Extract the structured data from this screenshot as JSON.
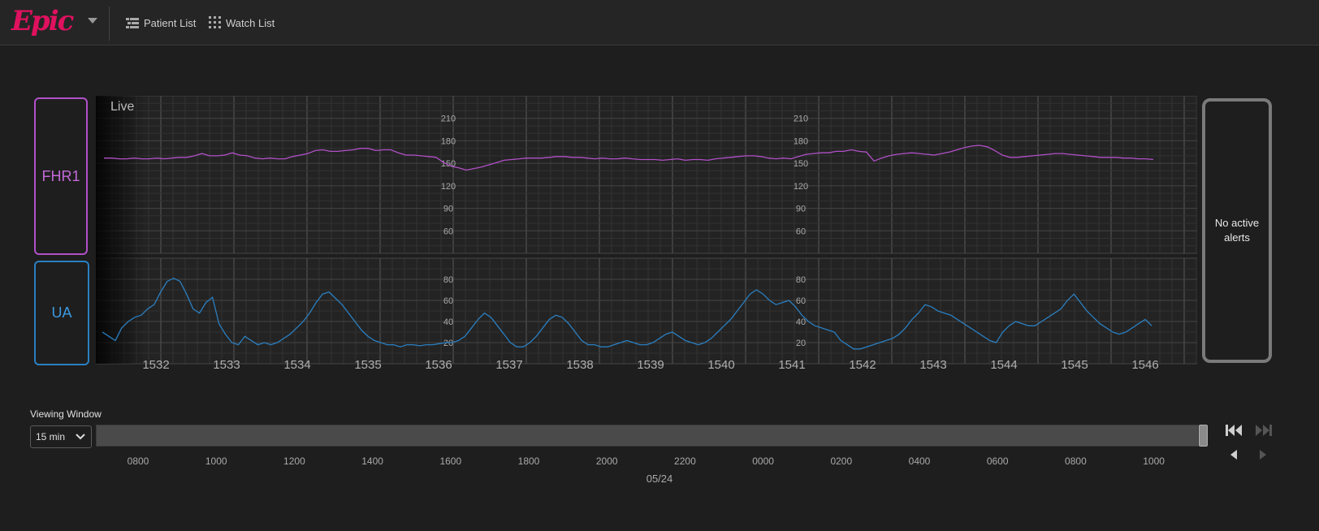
{
  "app": {
    "logo_text": "Epic",
    "brand_color": "#e0115f"
  },
  "nav": {
    "patient_list": {
      "label": "Patient List",
      "icon": "list-icon"
    },
    "watch_list": {
      "label": "Watch List",
      "icon": "grid-dots-icon"
    }
  },
  "tracing": {
    "mode_label": "Live",
    "fhr_label": "FHR1",
    "ua_label": "UA",
    "fhr_color": "#b150c8",
    "ua_color": "#2a7fc1",
    "fhr_scale_labels": [
      "210",
      "180",
      "150",
      "120",
      "90",
      "60"
    ],
    "ua_scale_labels": [
      "80",
      "60",
      "40",
      "20"
    ],
    "time_labels": [
      "1532",
      "1533",
      "1534",
      "1535",
      "1536",
      "1537",
      "1538",
      "1539",
      "1540",
      "1541",
      "1542",
      "1543",
      "1544",
      "1545",
      "1546"
    ],
    "fhr_series_bpm": [
      157,
      157,
      156,
      156,
      157,
      156,
      156,
      157,
      156,
      157,
      158,
      158,
      160,
      163,
      160,
      160,
      161,
      164,
      161,
      160,
      157,
      156,
      157,
      156,
      156,
      159,
      161,
      163,
      167,
      168,
      166,
      166,
      167,
      168,
      170,
      170,
      167,
      168,
      168,
      164,
      161,
      161,
      160,
      159,
      158,
      151,
      146,
      144,
      141,
      143,
      145,
      148,
      151,
      154,
      155,
      156,
      157,
      157,
      157,
      158,
      159,
      159,
      158,
      158,
      157,
      156,
      157,
      156,
      156,
      157,
      156,
      155,
      155,
      155,
      154,
      155,
      156,
      154,
      155,
      155,
      154,
      156,
      157,
      158,
      159,
      160,
      160,
      159,
      157,
      156,
      157,
      156,
      159,
      162,
      163,
      164,
      164,
      166,
      166,
      168,
      166,
      165,
      153,
      157,
      160,
      162,
      163,
      164,
      163,
      162,
      161,
      163,
      165,
      168,
      171,
      173,
      174,
      172,
      167,
      161,
      158,
      158,
      159,
      160,
      161,
      162,
      163,
      163,
      162,
      161,
      160,
      159,
      158,
      158,
      158,
      157,
      157,
      156,
      156,
      155
    ],
    "ua_series_mmhg": [
      30,
      26,
      22,
      34,
      40,
      44,
      46,
      52,
      56,
      68,
      78,
      81,
      78,
      66,
      52,
      48,
      58,
      63,
      38,
      28,
      20,
      18,
      26,
      22,
      18,
      20,
      18,
      20,
      24,
      28,
      34,
      40,
      48,
      58,
      66,
      68,
      62,
      56,
      48,
      40,
      32,
      26,
      22,
      20,
      18,
      18,
      16,
      18,
      18,
      17,
      18,
      18,
      19,
      20,
      20,
      22,
      26,
      34,
      42,
      48,
      44,
      36,
      28,
      20,
      16,
      16,
      20,
      26,
      34,
      42,
      46,
      44,
      38,
      30,
      22,
      18,
      18,
      16,
      16,
      18,
      20,
      22,
      20,
      18,
      18,
      20,
      24,
      28,
      30,
      26,
      22,
      20,
      18,
      20,
      24,
      30,
      36,
      42,
      50,
      58,
      66,
      70,
      66,
      60,
      56,
      58,
      60,
      54,
      46,
      40,
      36,
      34,
      32,
      30,
      22,
      18,
      14,
      14,
      16,
      18,
      20,
      22,
      24,
      28,
      34,
      42,
      48,
      56,
      54,
      50,
      48,
      46,
      42,
      38,
      34,
      30,
      26,
      22,
      20,
      30,
      36,
      40,
      38,
      36,
      36,
      40,
      44,
      48,
      52,
      60,
      66,
      58,
      50,
      44,
      38,
      34,
      30,
      28,
      30,
      34,
      38,
      42,
      36
    ]
  },
  "alerts": {
    "text_line1": "No active",
    "text_line2": "alerts"
  },
  "viewing_window": {
    "label": "Viewing Window",
    "selected": "15 min",
    "time_labels": [
      "0800",
      "1000",
      "1200",
      "1400",
      "1600",
      "1800",
      "2000",
      "2200",
      "0000",
      "0200",
      "0400",
      "0600",
      "0800",
      "1000"
    ],
    "date_label": "05/24"
  },
  "controls": {
    "jump_start": "skip-back-icon",
    "jump_end": "skip-forward-icon",
    "step_back": "step-back-icon",
    "step_forward": "step-forward-icon"
  }
}
